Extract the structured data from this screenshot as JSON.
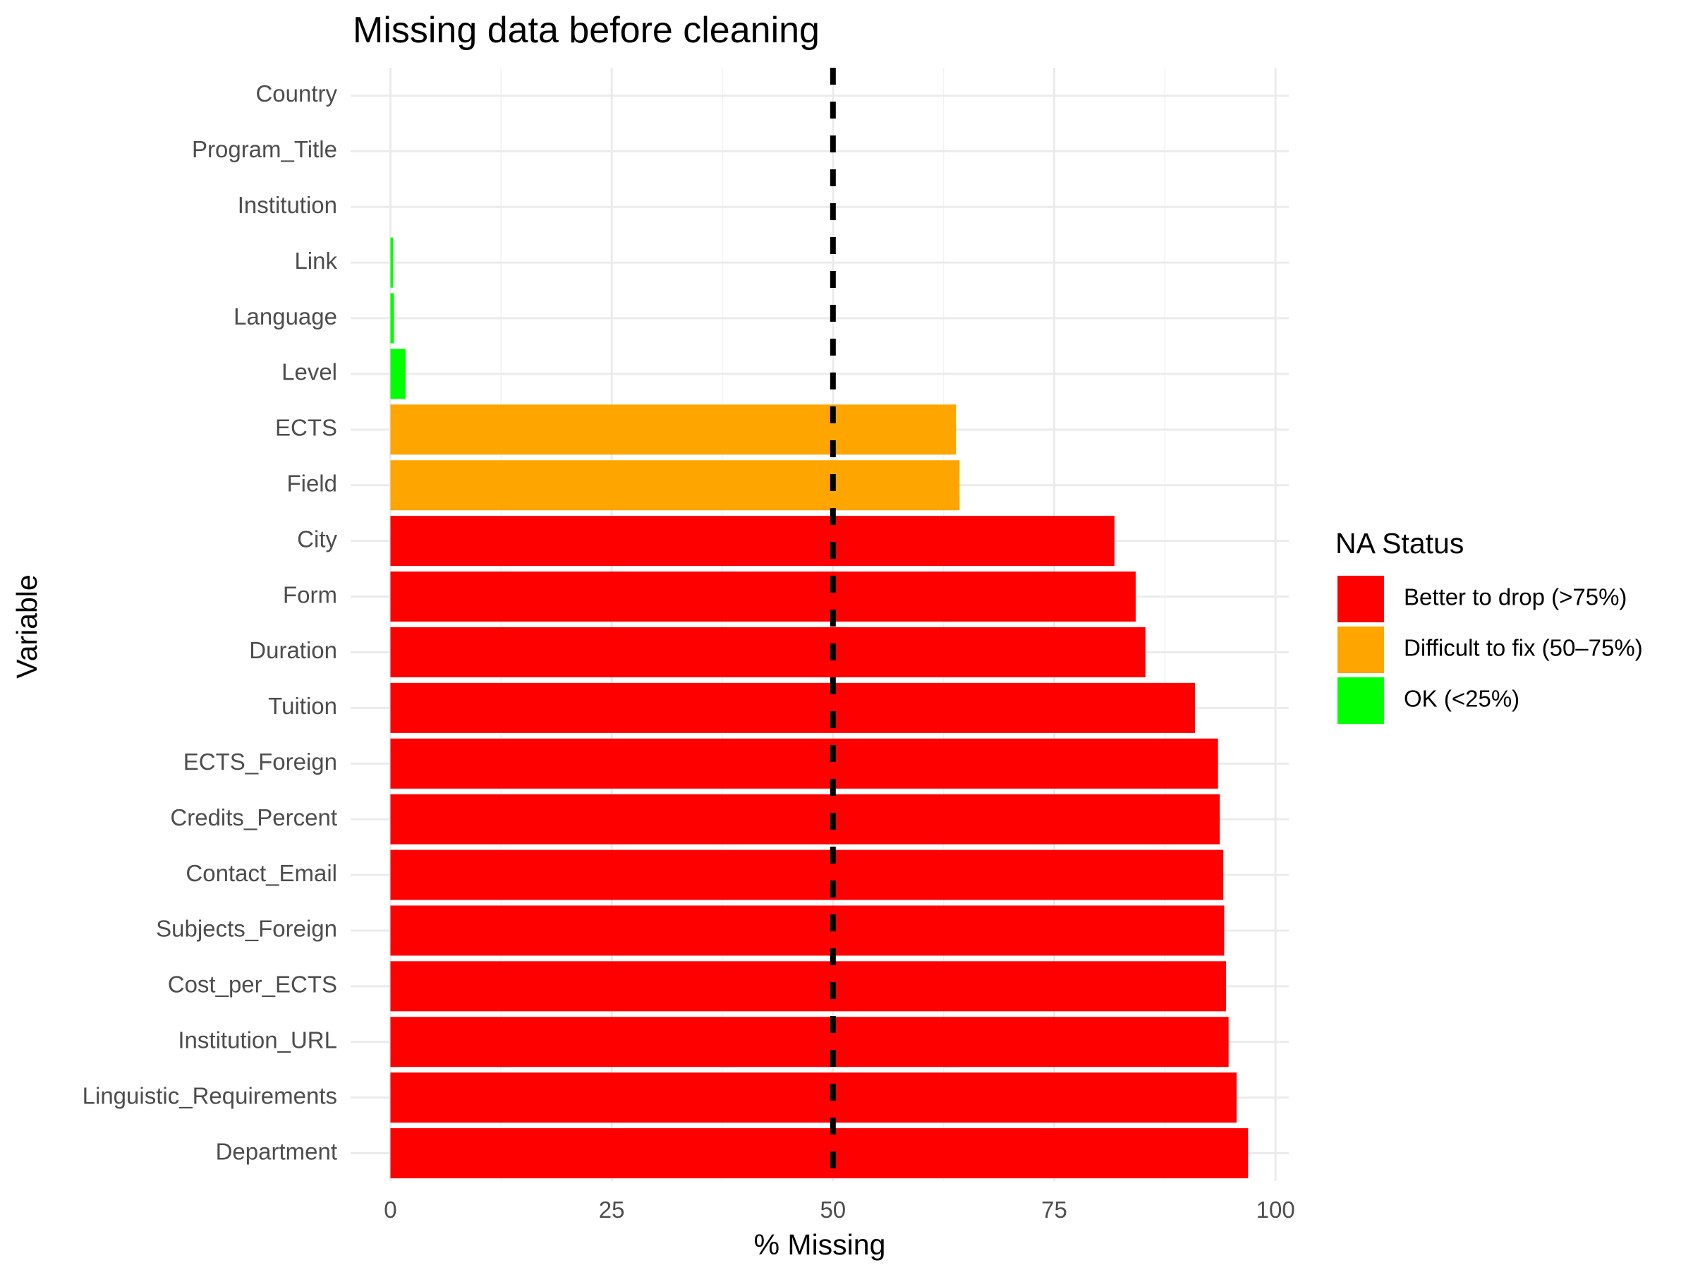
{
  "chart_data": {
    "type": "bar",
    "orientation": "horizontal",
    "title": "Missing data before cleaning",
    "xlabel": "% Missing",
    "ylabel": "Variable",
    "xlim": [
      -4.5,
      101.5
    ],
    "x_ticks": [
      0,
      25,
      50,
      75,
      100
    ],
    "grid": true,
    "reference_line": {
      "x": 50,
      "style": "dashed",
      "color": "#000000"
    },
    "categories": [
      "Country",
      "Program_Title",
      "Institution",
      "Link",
      "Language",
      "Level",
      "ECTS",
      "Field",
      "City",
      "Form",
      "Duration",
      "Tuition",
      "ECTS_Foreign",
      "Credits_Percent",
      "Contact_Email",
      "Subjects_Foreign",
      "Cost_per_ECTS",
      "Institution_URL",
      "Linguistic_Requirements",
      "Department"
    ],
    "values": [
      0,
      0,
      0,
      0.3,
      0.4,
      1.7,
      63.9,
      64.3,
      81.8,
      84.2,
      85.3,
      90.9,
      93.5,
      93.7,
      94.1,
      94.2,
      94.4,
      94.7,
      95.6,
      96.9
    ],
    "status": [
      "OK (<25%)",
      "OK (<25%)",
      "OK (<25%)",
      "OK (<25%)",
      "OK (<25%)",
      "OK (<25%)",
      "Difficult to fix (50–75%)",
      "Difficult to fix (50–75%)",
      "Better to drop (>75%)",
      "Better to drop (>75%)",
      "Better to drop (>75%)",
      "Better to drop (>75%)",
      "Better to drop (>75%)",
      "Better to drop (>75%)",
      "Better to drop (>75%)",
      "Better to drop (>75%)",
      "Better to drop (>75%)",
      "Better to drop (>75%)",
      "Better to drop (>75%)",
      "Better to drop (>75%)"
    ],
    "legend": {
      "title": "NA Status",
      "placement": "right",
      "items": [
        {
          "label": "Better to drop (>75%)",
          "color": "#ff0000"
        },
        {
          "label": "Difficult to fix (50–75%)",
          "color": "#ffa500"
        },
        {
          "label": "OK (<25%)",
          "color": "#00ff00"
        }
      ]
    }
  }
}
